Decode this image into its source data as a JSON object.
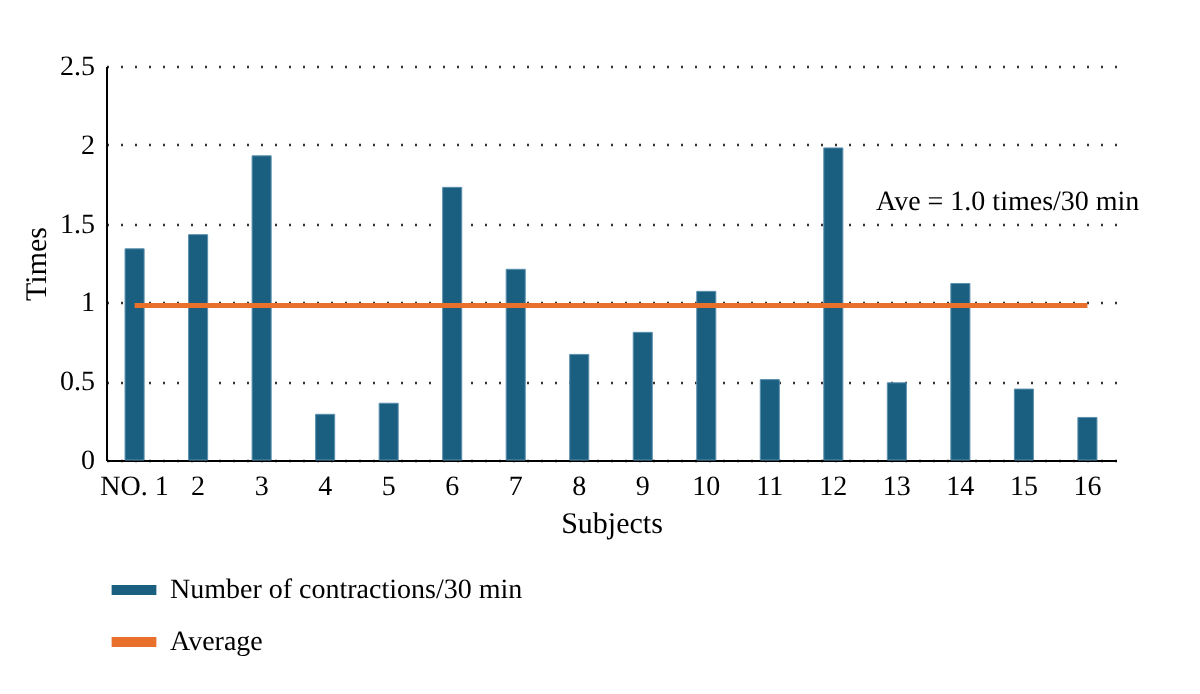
{
  "chart_data": {
    "type": "bar",
    "xlabel": "Subjects",
    "ylabel": "Times",
    "categories": [
      "NO. 1",
      "2",
      "3",
      "4",
      "5",
      "6",
      "7",
      "8",
      "9",
      "10",
      "11",
      "12",
      "13",
      "14",
      "15",
      "16"
    ],
    "series": [
      {
        "name": "Number of contractions/30 min",
        "color": "#1a5e80",
        "values": [
          1.34,
          1.43,
          1.93,
          0.29,
          0.36,
          1.73,
          1.21,
          0.67,
          0.81,
          1.07,
          0.51,
          1.98,
          0.49,
          1.12,
          0.45,
          0.27
        ]
      },
      {
        "name": "Average",
        "type": "line",
        "color": "#e8702a",
        "values": [
          0.98,
          0.98,
          0.98,
          0.98,
          0.98,
          0.98,
          0.98,
          0.98,
          0.98,
          0.98,
          0.98,
          0.98,
          0.98,
          0.98,
          0.98,
          0.98
        ]
      }
    ],
    "annotations": [
      "Ave = 1.0 times/30 min"
    ],
    "ylim": [
      0,
      2.5
    ],
    "yticks": [
      0,
      0.5,
      1,
      1.5,
      2,
      2.5
    ],
    "grid": "y",
    "legend": "bottom left"
  }
}
